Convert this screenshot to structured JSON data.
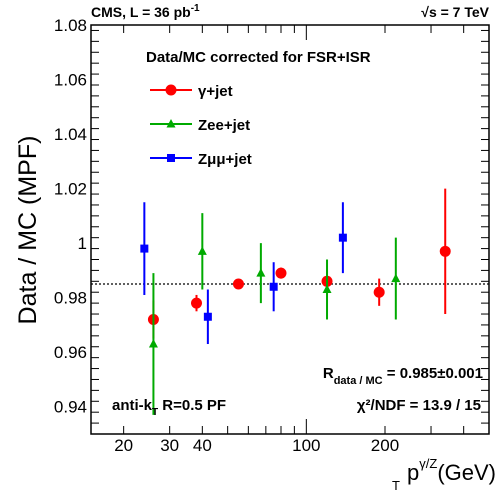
{
  "chart_data": {
    "type": "scatter",
    "header_left": "CMS, L = 36 pb",
    "header_left_sup": "-1",
    "header_right": "s = 7 TeV",
    "header_right_sqrt": "√",
    "ylabel": "Data / MC (MPF)",
    "xlabel_main": "p",
    "xlabel_sub": "T",
    "xlabel_sup": "γ/Z",
    "xlabel_unit": "(GeV)",
    "xscale": "log",
    "xlim": [
      15,
      500
    ],
    "ylim": [
      0.93,
      1.08
    ],
    "x_tick_labels": [
      {
        "value": 20,
        "label": "20"
      },
      {
        "value": 30,
        "label": "30"
      },
      {
        "value": 40,
        "label": "40"
      },
      {
        "value": 100,
        "label": "100"
      },
      {
        "value": 200,
        "label": "200"
      }
    ],
    "y_tick_labels": [
      {
        "value": 0.94,
        "label": "0.94"
      },
      {
        "value": 0.96,
        "label": "0.96"
      },
      {
        "value": 0.98,
        "label": "0.98"
      },
      {
        "value": 1.0,
        "label": "1"
      },
      {
        "value": 1.02,
        "label": "1.02"
      },
      {
        "value": 1.04,
        "label": "1.04"
      },
      {
        "value": 1.06,
        "label": "1.06"
      },
      {
        "value": 1.08,
        "label": "1.08"
      }
    ],
    "legend_title": "Data/MC corrected for FSR+ISR",
    "legend_position": "top-center",
    "fit_line": {
      "value": 0.985,
      "style": "dotted"
    },
    "fit_label_main": "R",
    "fit_label_sub": "data / MC",
    "fit_label_value": " = 0.985±0.001",
    "chi2_label": "χ²/NDF = 13.9 / 15",
    "algo_label_pre": "anti-k",
    "algo_label_sub": "T",
    "algo_label_post": " R=0.5 PF",
    "series": [
      {
        "name": "γ+jet",
        "color": "#ff0000",
        "marker": "circle",
        "points": [
          {
            "x": 26,
            "y": 0.972,
            "err": 0.007
          },
          {
            "x": 38,
            "y": 0.978,
            "err": 0.003
          },
          {
            "x": 55,
            "y": 0.985,
            "err": 0.001
          },
          {
            "x": 80,
            "y": 0.989,
            "err": 0.002
          },
          {
            "x": 120,
            "y": 0.986,
            "err": 0.004
          },
          {
            "x": 190,
            "y": 0.982,
            "err": 0.005
          },
          {
            "x": 340,
            "y": 0.997,
            "err": 0.023
          }
        ]
      },
      {
        "name": "Zee+jet",
        "color": "#00aa00",
        "marker": "triangle",
        "points": [
          {
            "x": 26,
            "y": 0.963,
            "err": 0.026
          },
          {
            "x": 40,
            "y": 0.997,
            "err": 0.014
          },
          {
            "x": 67,
            "y": 0.989,
            "err": 0.011
          },
          {
            "x": 120,
            "y": 0.983,
            "err": 0.011
          },
          {
            "x": 220,
            "y": 0.987,
            "err": 0.015
          }
        ]
      },
      {
        "name": "Zμμ+jet",
        "color": "#0000ff",
        "marker": "square",
        "points": [
          {
            "x": 24,
            "y": 0.998,
            "err": 0.017
          },
          {
            "x": 42,
            "y": 0.973,
            "err": 0.01
          },
          {
            "x": 75,
            "y": 0.984,
            "err": 0.009
          },
          {
            "x": 138,
            "y": 1.002,
            "err": 0.013
          }
        ]
      }
    ]
  }
}
